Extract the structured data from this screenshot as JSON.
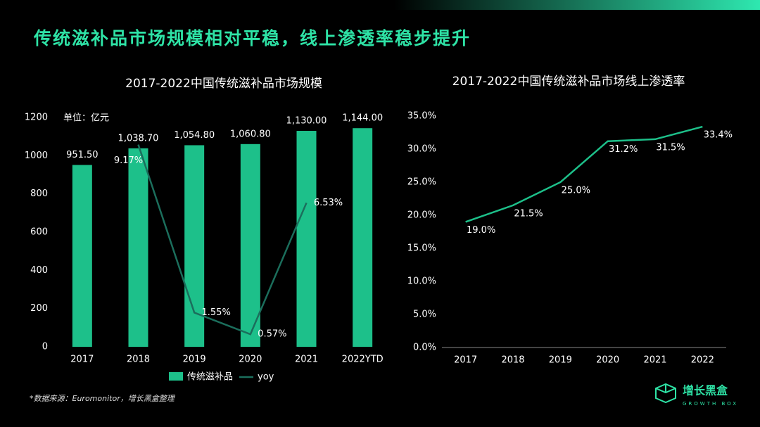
{
  "title": "传统滋补品市场规模相对平稳，线上渗透率稳步提升",
  "source": "*数据来源：Euromonitor，增长黑盒整理",
  "logo": {
    "name": "增长黑盒",
    "tagline": "GROWTH BOX"
  },
  "chart_data": [
    {
      "type": "bar",
      "title": "2017-2022中国传统滋补品市场规模",
      "unit_label": "单位：亿元",
      "categories": [
        "2017",
        "2018",
        "2019",
        "2020",
        "2021",
        "2022YTD"
      ],
      "series": [
        {
          "name": "传统滋补品",
          "type": "bar",
          "color": "#1dc08a",
          "values": [
            951.5,
            1038.7,
            1054.8,
            1060.8,
            1130.0,
            1144.0
          ],
          "value_labels": [
            "951.50",
            "1,038.70",
            "1,054.80",
            "1,060.80",
            "1,130.00",
            "1,144.00"
          ]
        },
        {
          "name": "yoy",
          "type": "line",
          "axis": "y2",
          "color": "#1b6e5c",
          "values": [
            null,
            9.17,
            1.55,
            0.57,
            6.53,
            null
          ],
          "value_labels": [
            null,
            "9.17%",
            "1.55%",
            "0.57%",
            "6.53%",
            null
          ]
        }
      ],
      "ylim": [
        0,
        1200
      ],
      "yticks": [
        0,
        200,
        400,
        600,
        800,
        1000,
        1200
      ],
      "y2lim": [
        0,
        10.4
      ],
      "legend": "bottom"
    },
    {
      "type": "line",
      "title": "2017-2022中国传统滋补品市场线上渗透率",
      "categories": [
        "2017",
        "2018",
        "2019",
        "2020",
        "2021",
        "2022"
      ],
      "values": [
        19.0,
        21.5,
        25.0,
        31.2,
        31.5,
        33.4
      ],
      "value_labels": [
        "19.0%",
        "21.5%",
        "25.0%",
        "31.2%",
        "31.5%",
        "33.4%"
      ],
      "color": "#1dc08a",
      "ylim": [
        0,
        35
      ],
      "yticks": [
        {
          "value": 0,
          "label": "0.0%"
        },
        {
          "value": 5,
          "label": "5.0%"
        },
        {
          "value": 10,
          "label": "10.0%"
        },
        {
          "value": 15,
          "label": "15.0%"
        },
        {
          "value": 20,
          "label": "20.0%"
        },
        {
          "value": 25,
          "label": "25.0%"
        },
        {
          "value": 30,
          "label": "30.0%"
        },
        {
          "value": 35,
          "label": "35.0%"
        }
      ]
    }
  ]
}
